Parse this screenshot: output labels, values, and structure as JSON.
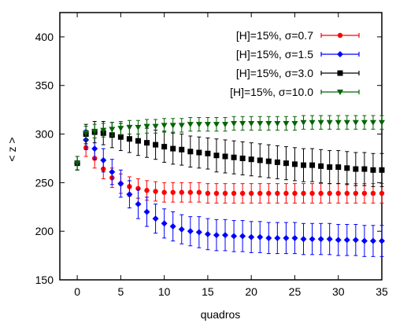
{
  "chart_data": {
    "type": "scatter",
    "title": "",
    "xlabel": "quadros",
    "ylabel": "< z >",
    "xlim": [
      -2,
      35
    ],
    "ylim": [
      150,
      425
    ],
    "x_ticks": [
      0,
      5,
      10,
      15,
      20,
      25,
      30,
      35
    ],
    "y_ticks": [
      150,
      200,
      250,
      300,
      350,
      400
    ],
    "grid": false,
    "legend_position": "top-right",
    "error_bars": true,
    "series": [
      {
        "name": "[H]=15%, σ=0.7",
        "color": "#ff0000",
        "marker": "circle",
        "x": [
          0,
          1,
          2,
          3,
          4,
          5,
          6,
          7,
          8,
          9,
          10,
          11,
          12,
          13,
          14,
          15,
          16,
          17,
          18,
          19,
          20,
          21,
          22,
          23,
          24,
          25,
          26,
          27,
          28,
          29,
          30,
          31,
          32,
          33,
          34,
          35
        ],
        "y": [
          270,
          286,
          275,
          264,
          255,
          249,
          246,
          244,
          242,
          241,
          240,
          240,
          240,
          240,
          240,
          239,
          239,
          239,
          239,
          239,
          239,
          239,
          239,
          239,
          239,
          239,
          239,
          239,
          239,
          239,
          239,
          239,
          239,
          239,
          239,
          239
        ],
        "err": [
          7,
          9,
          10,
          10,
          10,
          10,
          10,
          10,
          10,
          10,
          10,
          10,
          10,
          10,
          10,
          10,
          10,
          10,
          10,
          10,
          10,
          10,
          10,
          10,
          10,
          10,
          10,
          10,
          10,
          10,
          10,
          10,
          10,
          10,
          10,
          10
        ]
      },
      {
        "name": "[H]=15%, σ=1.5",
        "color": "#0000ff",
        "marker": "diamond",
        "x": [
          0,
          1,
          2,
          3,
          4,
          5,
          6,
          7,
          8,
          9,
          10,
          11,
          12,
          13,
          14,
          15,
          16,
          17,
          18,
          19,
          20,
          21,
          22,
          23,
          24,
          25,
          26,
          27,
          28,
          29,
          30,
          31,
          32,
          33,
          34,
          35
        ],
        "y": [
          270,
          294,
          285,
          273,
          261,
          249,
          238,
          228,
          220,
          213,
          208,
          205,
          202,
          200,
          199,
          197,
          196,
          196,
          195,
          195,
          194,
          194,
          193,
          193,
          193,
          193,
          192,
          192,
          192,
          192,
          191,
          191,
          191,
          190,
          190,
          190
        ],
        "err": [
          7,
          10,
          11,
          12,
          13,
          14,
          14,
          15,
          15,
          15,
          15,
          15,
          15,
          15,
          16,
          16,
          16,
          16,
          16,
          16,
          16,
          16,
          16,
          16,
          16,
          16,
          16,
          16,
          16,
          16,
          16,
          16,
          16,
          16,
          16,
          16
        ]
      },
      {
        "name": "[H]=15%, σ=3.0",
        "color": "#000000",
        "marker": "square",
        "x": [
          0,
          1,
          2,
          3,
          4,
          5,
          6,
          7,
          8,
          9,
          10,
          11,
          12,
          13,
          14,
          15,
          16,
          17,
          18,
          19,
          20,
          21,
          22,
          23,
          24,
          25,
          26,
          27,
          28,
          29,
          30,
          31,
          32,
          33,
          34,
          35
        ],
        "y": [
          270,
          300,
          302,
          301,
          299,
          297,
          295,
          293,
          291,
          289,
          287,
          285,
          284,
          282,
          281,
          280,
          278,
          277,
          276,
          275,
          274,
          273,
          272,
          271,
          270,
          269,
          268,
          268,
          267,
          266,
          266,
          265,
          264,
          264,
          263,
          263
        ],
        "err": [
          7,
          10,
          11,
          12,
          13,
          14,
          14,
          15,
          15,
          15,
          16,
          16,
          16,
          16,
          16,
          16,
          17,
          17,
          17,
          17,
          17,
          17,
          17,
          17,
          17,
          17,
          17,
          17,
          17,
          17,
          17,
          17,
          17,
          17,
          17,
          17
        ]
      },
      {
        "name": "[H]=15%, σ=10.0",
        "color": "#006400",
        "marker": "triangle-down",
        "x": [
          0,
          1,
          2,
          3,
          4,
          5,
          6,
          7,
          8,
          9,
          10,
          11,
          12,
          13,
          14,
          15,
          16,
          17,
          18,
          19,
          20,
          21,
          22,
          23,
          24,
          25,
          26,
          27,
          28,
          29,
          30,
          31,
          32,
          33,
          34,
          35
        ],
        "y": [
          270,
          301,
          303,
          304,
          305,
          306,
          307,
          307,
          308,
          308,
          309,
          309,
          309,
          310,
          310,
          310,
          310,
          310,
          311,
          311,
          311,
          311,
          311,
          311,
          311,
          311,
          312,
          312,
          312,
          312,
          312,
          312,
          312,
          312,
          312,
          312
        ],
        "err": [
          7,
          7,
          7,
          7,
          7,
          7,
          7,
          7,
          7,
          7,
          7,
          7,
          7,
          7,
          7,
          7,
          7,
          7,
          7,
          7,
          7,
          7,
          7,
          7,
          7,
          7,
          7,
          7,
          7,
          7,
          7,
          7,
          7,
          7,
          7,
          7
        ]
      }
    ]
  }
}
